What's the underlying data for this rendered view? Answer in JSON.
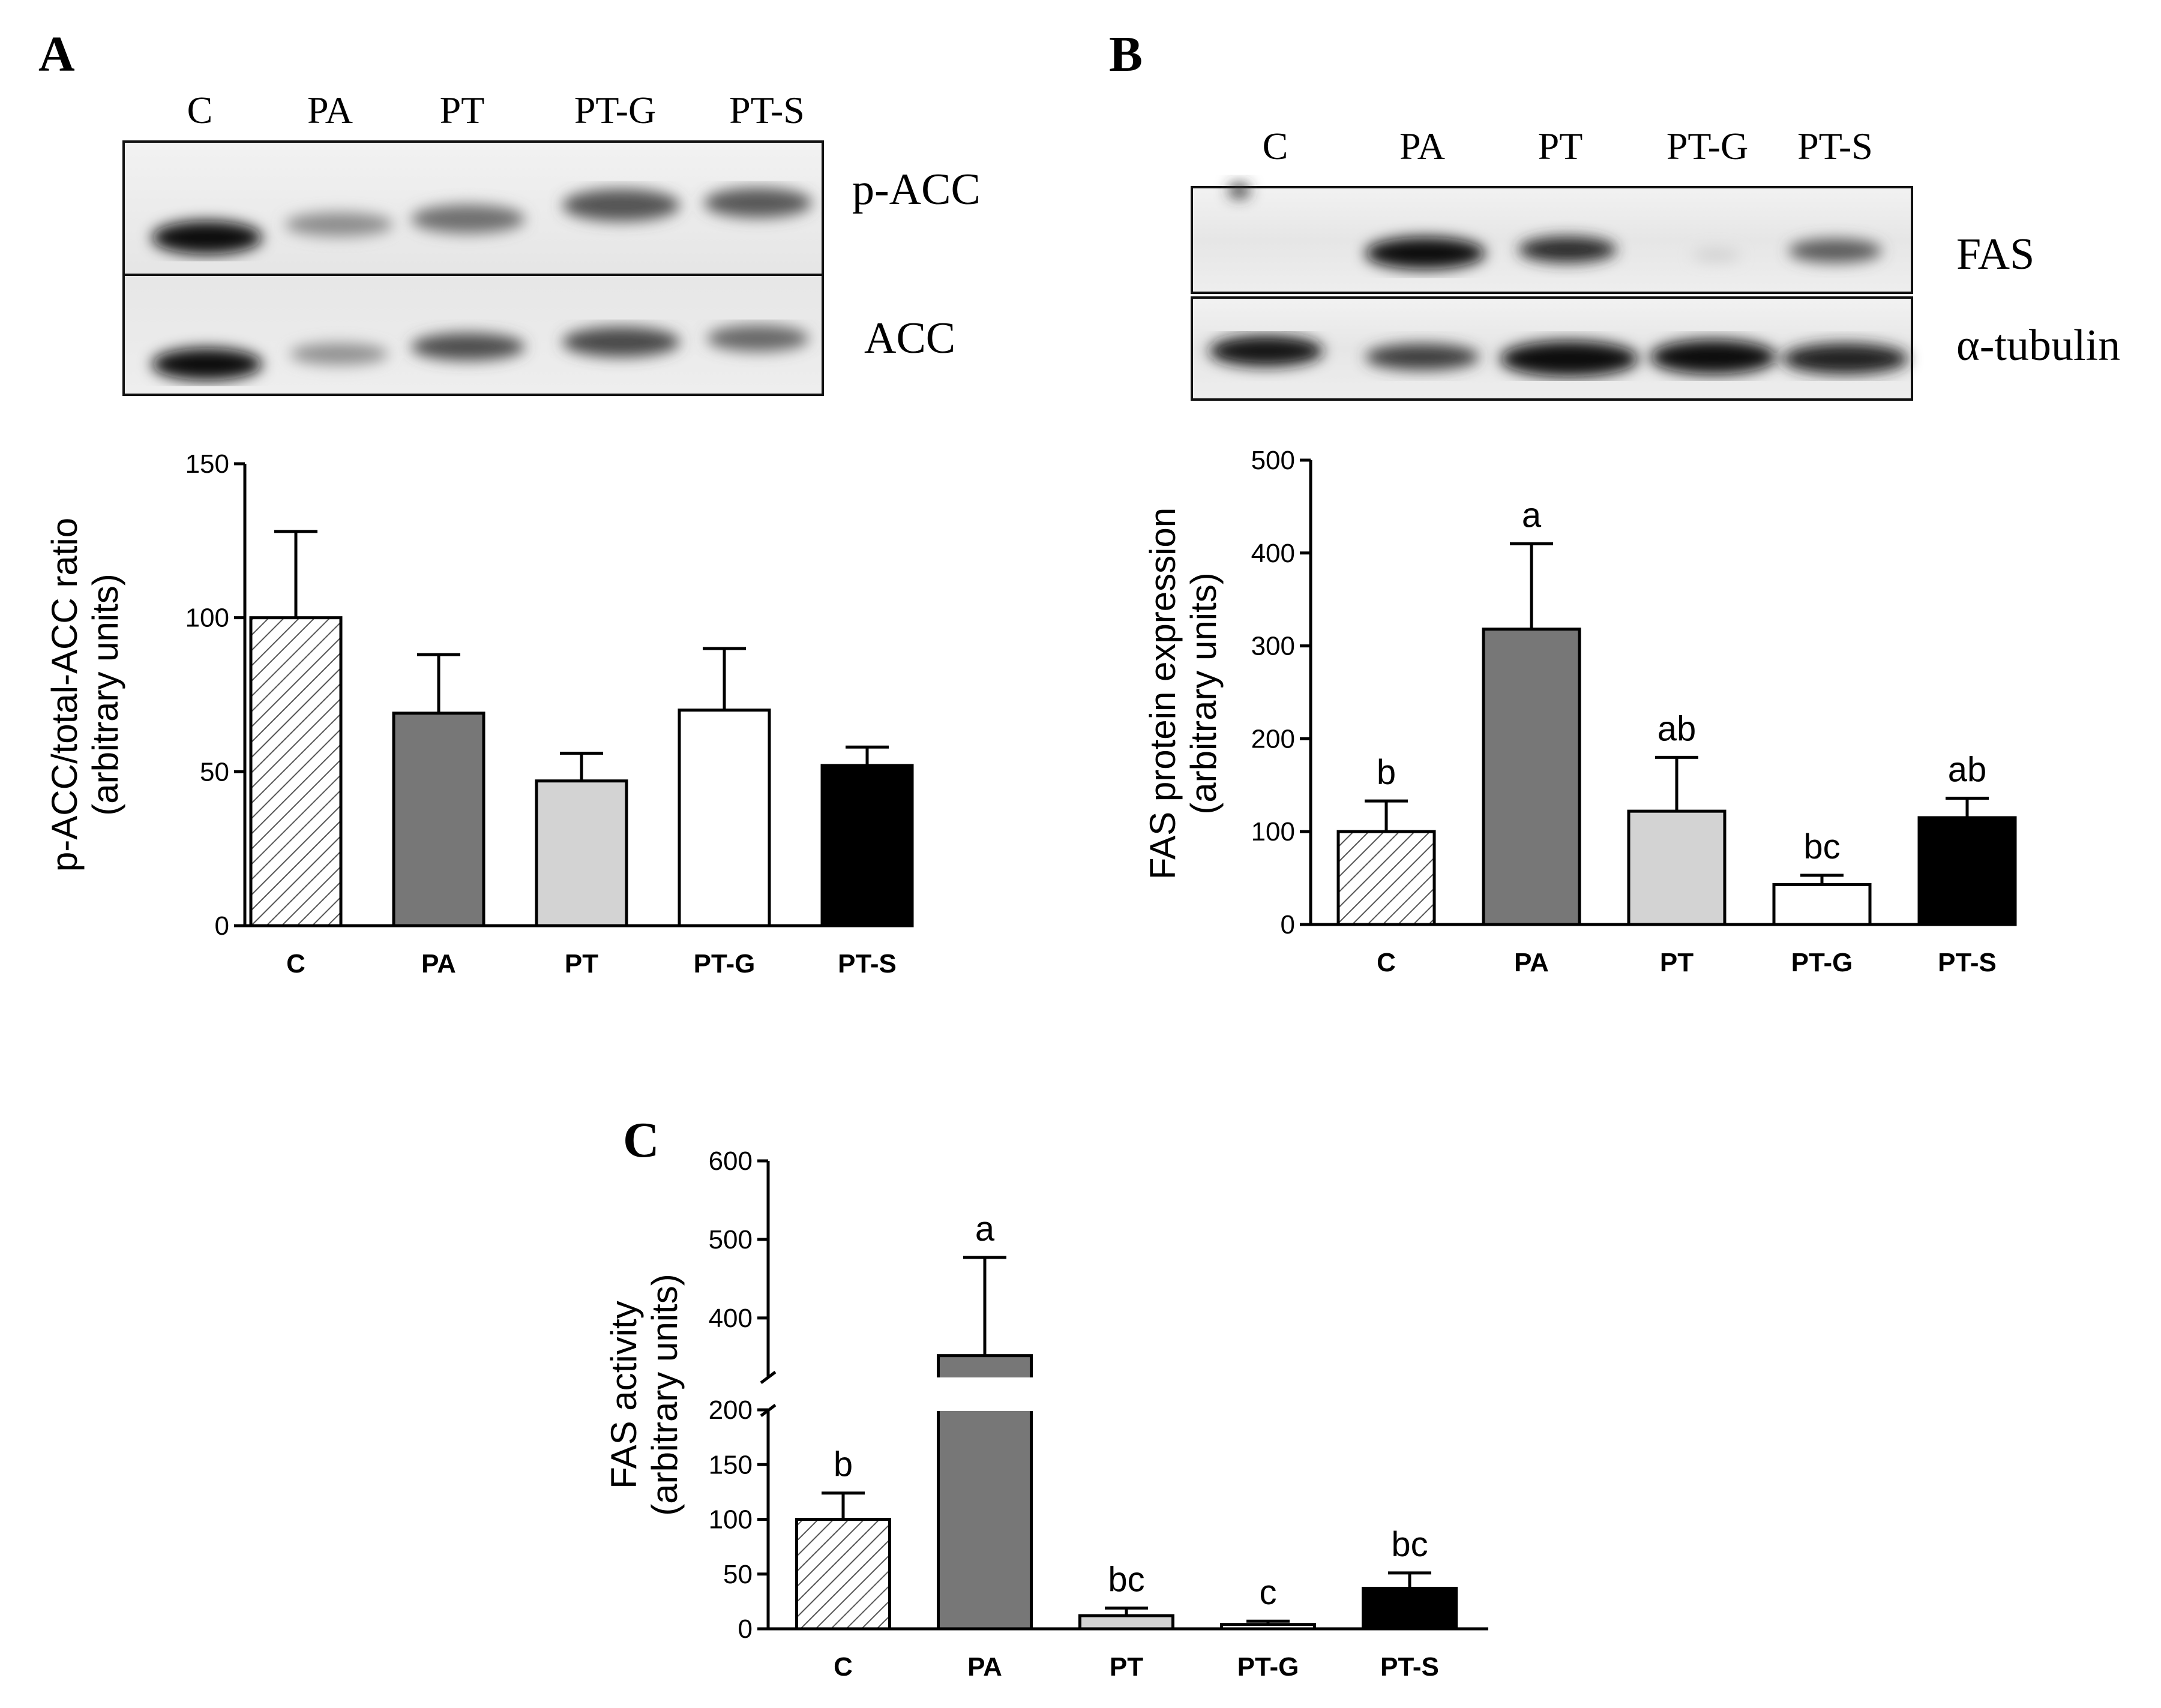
{
  "chart_data": [
    {
      "panel": "A",
      "type": "bar",
      "blot": {
        "lanes": [
          "C",
          "PA",
          "PT",
          "PT-G",
          "PT-S"
        ],
        "rows": [
          "p-ACC",
          "ACC"
        ]
      },
      "categories": [
        "C",
        "PA",
        "PT",
        "PT-G",
        "PT-S"
      ],
      "values": [
        100,
        69,
        47,
        70,
        52
      ],
      "errors": [
        28,
        19,
        9,
        20,
        6
      ],
      "significance": [
        "",
        "",
        "",
        "",
        ""
      ],
      "ylabel_line1": "p-ACC/total-ACC ratio",
      "ylabel_line2": "(arbitrary units)",
      "ylim": [
        0,
        150
      ],
      "yticks": [
        0,
        50,
        100,
        150
      ],
      "bar_fills": [
        "hatch",
        "#777777",
        "#d3d3d3",
        "#ffffff",
        "#000000"
      ]
    },
    {
      "panel": "B",
      "type": "bar",
      "blot": {
        "lanes": [
          "C",
          "PA",
          "PT",
          "PT-G",
          "PT-S"
        ],
        "rows": [
          "FAS",
          "α-tubulin"
        ]
      },
      "categories": [
        "C",
        "PA",
        "PT",
        "PT-G",
        "PT-S"
      ],
      "values": [
        100,
        318,
        122,
        43,
        115
      ],
      "errors": [
        33,
        92,
        58,
        10,
        21
      ],
      "significance": [
        "b",
        "a",
        "ab",
        "bc",
        "ab"
      ],
      "ylabel_line1": "FAS protein expression",
      "ylabel_line2": "(arbitrary units)",
      "ylim": [
        0,
        500
      ],
      "yticks": [
        0,
        100,
        200,
        300,
        400,
        500
      ],
      "bar_fills": [
        "hatch",
        "#777777",
        "#d3d3d3",
        "#ffffff",
        "#000000"
      ]
    },
    {
      "panel": "C",
      "type": "bar",
      "categories": [
        "C",
        "PA",
        "PT",
        "PT-G",
        "PT-S"
      ],
      "values": [
        100,
        352,
        12,
        4,
        37
      ],
      "errors": [
        24,
        125,
        7,
        3,
        14
      ],
      "significance": [
        "b",
        "a",
        "bc",
        "c",
        "bc"
      ],
      "ylabel_line1": "FAS activity",
      "ylabel_line2": "(arbitrary units)",
      "axis_break": [
        200,
        325
      ],
      "ylim": [
        0,
        600
      ],
      "yticks": [
        0,
        50,
        100,
        150,
        200,
        400,
        500,
        600
      ],
      "bar_fills": [
        "hatch",
        "#777777",
        "#d3d3d3",
        "#ffffff",
        "#000000"
      ]
    }
  ]
}
